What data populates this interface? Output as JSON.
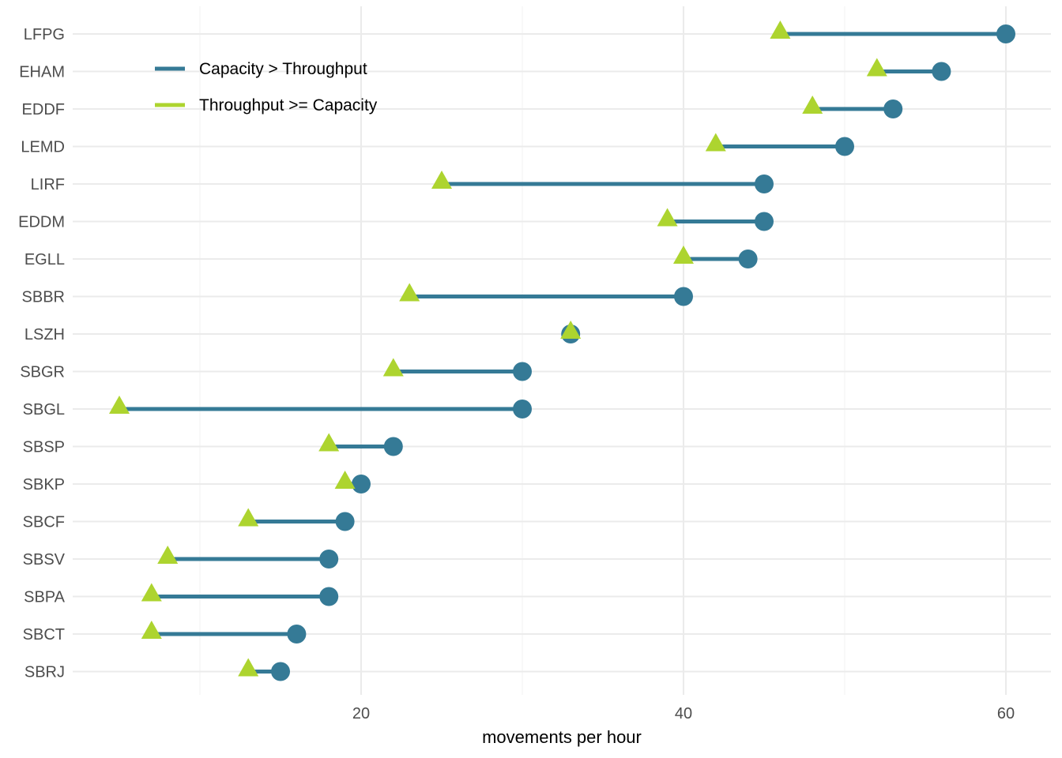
{
  "chart_data": {
    "type": "dumbbell",
    "xlabel": "movements per hour",
    "ylabel": "",
    "xlim": [
      1,
      63
    ],
    "x_ticks": [
      20,
      40,
      60
    ],
    "grid": true,
    "legend": {
      "placement": "top-left",
      "entries": [
        {
          "label": "Capacity > Throughput",
          "color": "#357a96"
        },
        {
          "label": "Throughput >= Capacity",
          "color": "#add42f"
        }
      ]
    },
    "series": [
      {
        "name": "Capacity",
        "marker": "circle",
        "color": "#357a96"
      },
      {
        "name": "Throughput",
        "marker": "triangle",
        "color": "#add42f"
      }
    ],
    "rows": [
      {
        "airport": "LFPG",
        "capacity": 60,
        "throughput": 46
      },
      {
        "airport": "EHAM",
        "capacity": 56,
        "throughput": 52
      },
      {
        "airport": "EDDF",
        "capacity": 53,
        "throughput": 48
      },
      {
        "airport": "LEMD",
        "capacity": 50,
        "throughput": 42
      },
      {
        "airport": "LIRF",
        "capacity": 45,
        "throughput": 25
      },
      {
        "airport": "EDDM",
        "capacity": 45,
        "throughput": 39
      },
      {
        "airport": "EGLL",
        "capacity": 44,
        "throughput": 40
      },
      {
        "airport": "SBBR",
        "capacity": 40,
        "throughput": 23
      },
      {
        "airport": "LSZH",
        "capacity": 33,
        "throughput": 33
      },
      {
        "airport": "SBGR",
        "capacity": 30,
        "throughput": 22
      },
      {
        "airport": "SBGL",
        "capacity": 30,
        "throughput": 5
      },
      {
        "airport": "SBSP",
        "capacity": 22,
        "throughput": 18
      },
      {
        "airport": "SBKP",
        "capacity": 20,
        "throughput": 19
      },
      {
        "airport": "SBCF",
        "capacity": 19,
        "throughput": 13
      },
      {
        "airport": "SBSV",
        "capacity": 18,
        "throughput": 8
      },
      {
        "airport": "SBPA",
        "capacity": 18,
        "throughput": 7
      },
      {
        "airport": "SBCT",
        "capacity": 16,
        "throughput": 7
      },
      {
        "airport": "SBRJ",
        "capacity": 15,
        "throughput": 13
      }
    ]
  }
}
